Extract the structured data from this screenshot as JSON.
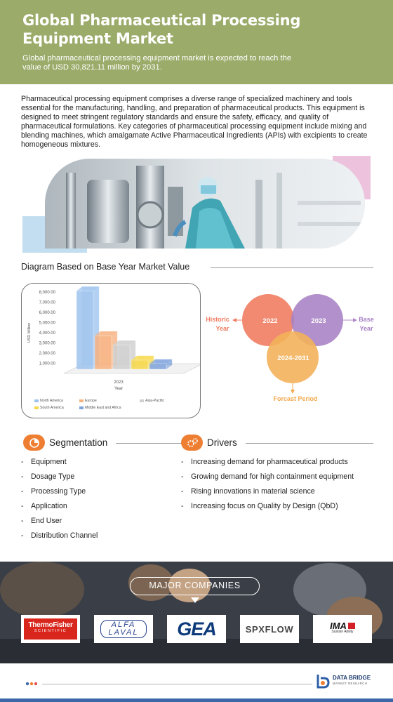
{
  "header": {
    "title_line1": "Global Pharmaceutical Processing",
    "title_line2": "Equipment Market",
    "subtitle": "Global pharmaceutical processing equipment market is expected to reach the value of USD 30,821.11 million by 2031."
  },
  "intro": {
    "text": "Pharmaceutical processing equipment comprises a diverse range of specialized machinery and tools essential for the manufacturing, handling, and preparation of pharmaceutical products. This equipment is designed to meet stringent regulatory standards and ensure the safety, efficacy, and quality of pharmaceutical formulations. Key categories of pharmaceutical processing equipment include mixing and blending machines, which amalgamate Active Pharmaceutical Ingredients (APIs) with excipients to create homogeneous mixtures."
  },
  "diagram": {
    "title": "Diagram Based on Base Year Market Value"
  },
  "chart_data": {
    "type": "bar",
    "categories": [
      "2023"
    ],
    "xlabel": "Year",
    "ylabel": "USD Million",
    "ylim": [
      0,
      8000
    ],
    "y_ticks": [
      "1,000.00",
      "2,000.00",
      "3,000.00",
      "4,000.00",
      "5,000.00",
      "6,000.00",
      "7,000.00",
      "8,000.00"
    ],
    "grid": false,
    "legend_position": "bottom",
    "series": [
      {
        "name": "North America",
        "values": [
          7700
        ],
        "color": "#9ec4ee"
      },
      {
        "name": "Europe",
        "values": [
          3300
        ],
        "color": "#f7b280"
      },
      {
        "name": "Asia-Pacific",
        "values": [
          2400
        ],
        "color": "#cfcfcf"
      },
      {
        "name": "South America",
        "values": [
          900
        ],
        "color": "#f7d84a"
      },
      {
        "name": "Middle East and Africa",
        "values": [
          550
        ],
        "color": "#7fa3dc"
      }
    ]
  },
  "venn": {
    "historic_year": "2022",
    "base_year": "2023",
    "forecast_period": "2024-2031",
    "historic_label_1": "Historic",
    "historic_label_2": "Year",
    "base_label_1": "Base",
    "base_label_2": "Year",
    "forecast_label": "Forcast Period"
  },
  "segmentation": {
    "title": "Segmentation",
    "items": [
      "Equipment",
      "Dosage Type",
      "Processing Type",
      "Application",
      "End User",
      "Distribution Channel"
    ]
  },
  "drivers": {
    "title": "Drivers",
    "items": [
      "Increasing demand for pharmaceutical products",
      "Growing demand for high containment equipment",
      "Rising innovations in material science",
      "Increasing focus on Quality by Design (QbD)"
    ]
  },
  "companies": {
    "title": "MAJOR COMPANIES",
    "logos": [
      {
        "line1": "ThermoFisher",
        "line2": "SCIENTIFIC"
      },
      {
        "line1": "ALFA",
        "line2": "LAVAL"
      },
      {
        "line1": "GEA"
      },
      {
        "line1": "SPXFLOW"
      },
      {
        "line1": "IMA",
        "line2": "Sustain Ability"
      }
    ]
  },
  "footer": {
    "brand_line1": "DATA BRIDGE",
    "brand_line2": "MARKET RESEARCH"
  },
  "colors": {
    "header_bg": "#9bab6a",
    "accent_orange": "#ee7e32",
    "venn_historic": "#ef7d62",
    "venn_base": "#a781c4",
    "venn_forecast": "#f3b15a",
    "footer_bar": "#3b67a8"
  }
}
